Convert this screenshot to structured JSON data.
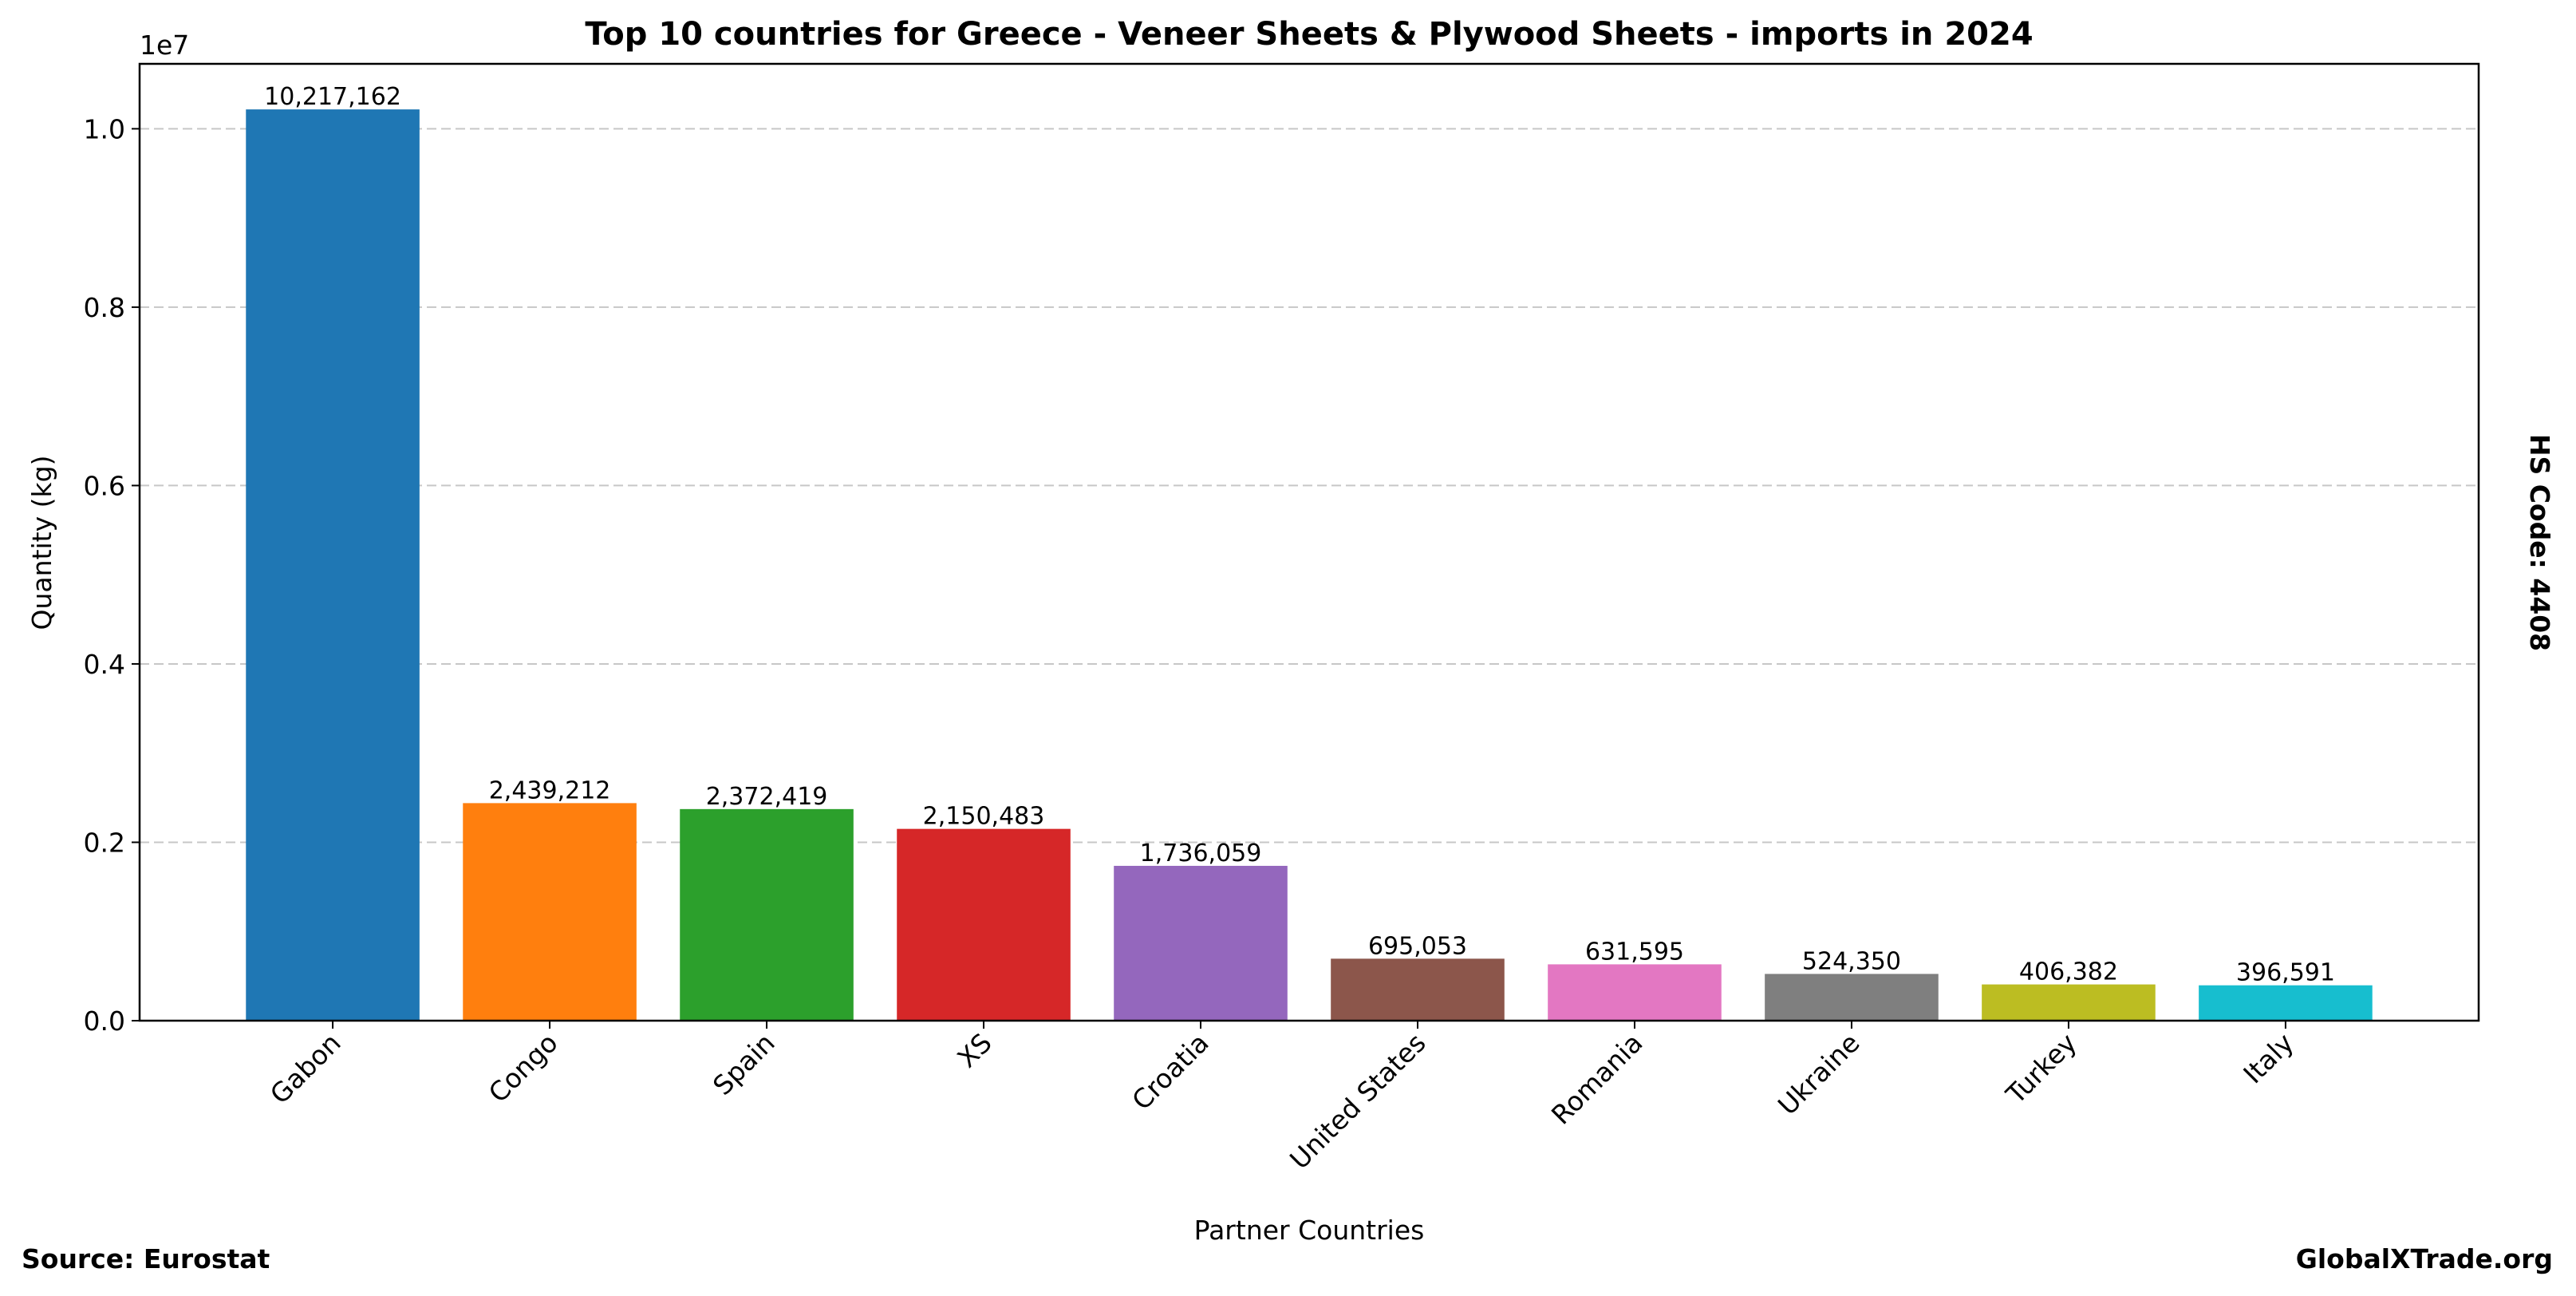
{
  "chart_data": {
    "type": "bar",
    "title": "Top 10 countries for Greece - Veneer Sheets & Plywood Sheets - imports in 2024",
    "xlabel": "Partner Countries",
    "ylabel": "Quantity (kg)",
    "y_offset_label": "1e7",
    "categories": [
      "Gabon",
      "Congo",
      "Spain",
      "XS",
      "Croatia",
      "United States",
      "Romania",
      "Ukraine",
      "Turkey",
      "Italy"
    ],
    "values": [
      10217162,
      2439212,
      2372419,
      2150483,
      1736059,
      695053,
      631595,
      524350,
      406382,
      396591
    ],
    "value_labels": [
      "10,217,162",
      "2,439,212",
      "2,372,419",
      "2,150,483",
      "1,736,059",
      "695,053",
      "631,595",
      "524,350",
      "406,382",
      "396,591"
    ],
    "colors": [
      "#1f77b4",
      "#ff7f0e",
      "#2ca02c",
      "#d62728",
      "#9467bd",
      "#8c564b",
      "#e377c2",
      "#7f7f7f",
      "#bcbd22",
      "#17becf"
    ],
    "ylim": [
      0,
      10728020
    ],
    "yticks": [
      0,
      2000000,
      4000000,
      6000000,
      8000000,
      10000000
    ],
    "ytick_labels": [
      "0.0",
      "0.2",
      "0.4",
      "0.6",
      "0.8",
      "1.0"
    ],
    "grid": "y-dashed",
    "legend": "none"
  },
  "annotations": {
    "source": "Source: Eurostat",
    "brand": "GlobalXTrade.org",
    "hs_code": "HS Code: 4408"
  }
}
